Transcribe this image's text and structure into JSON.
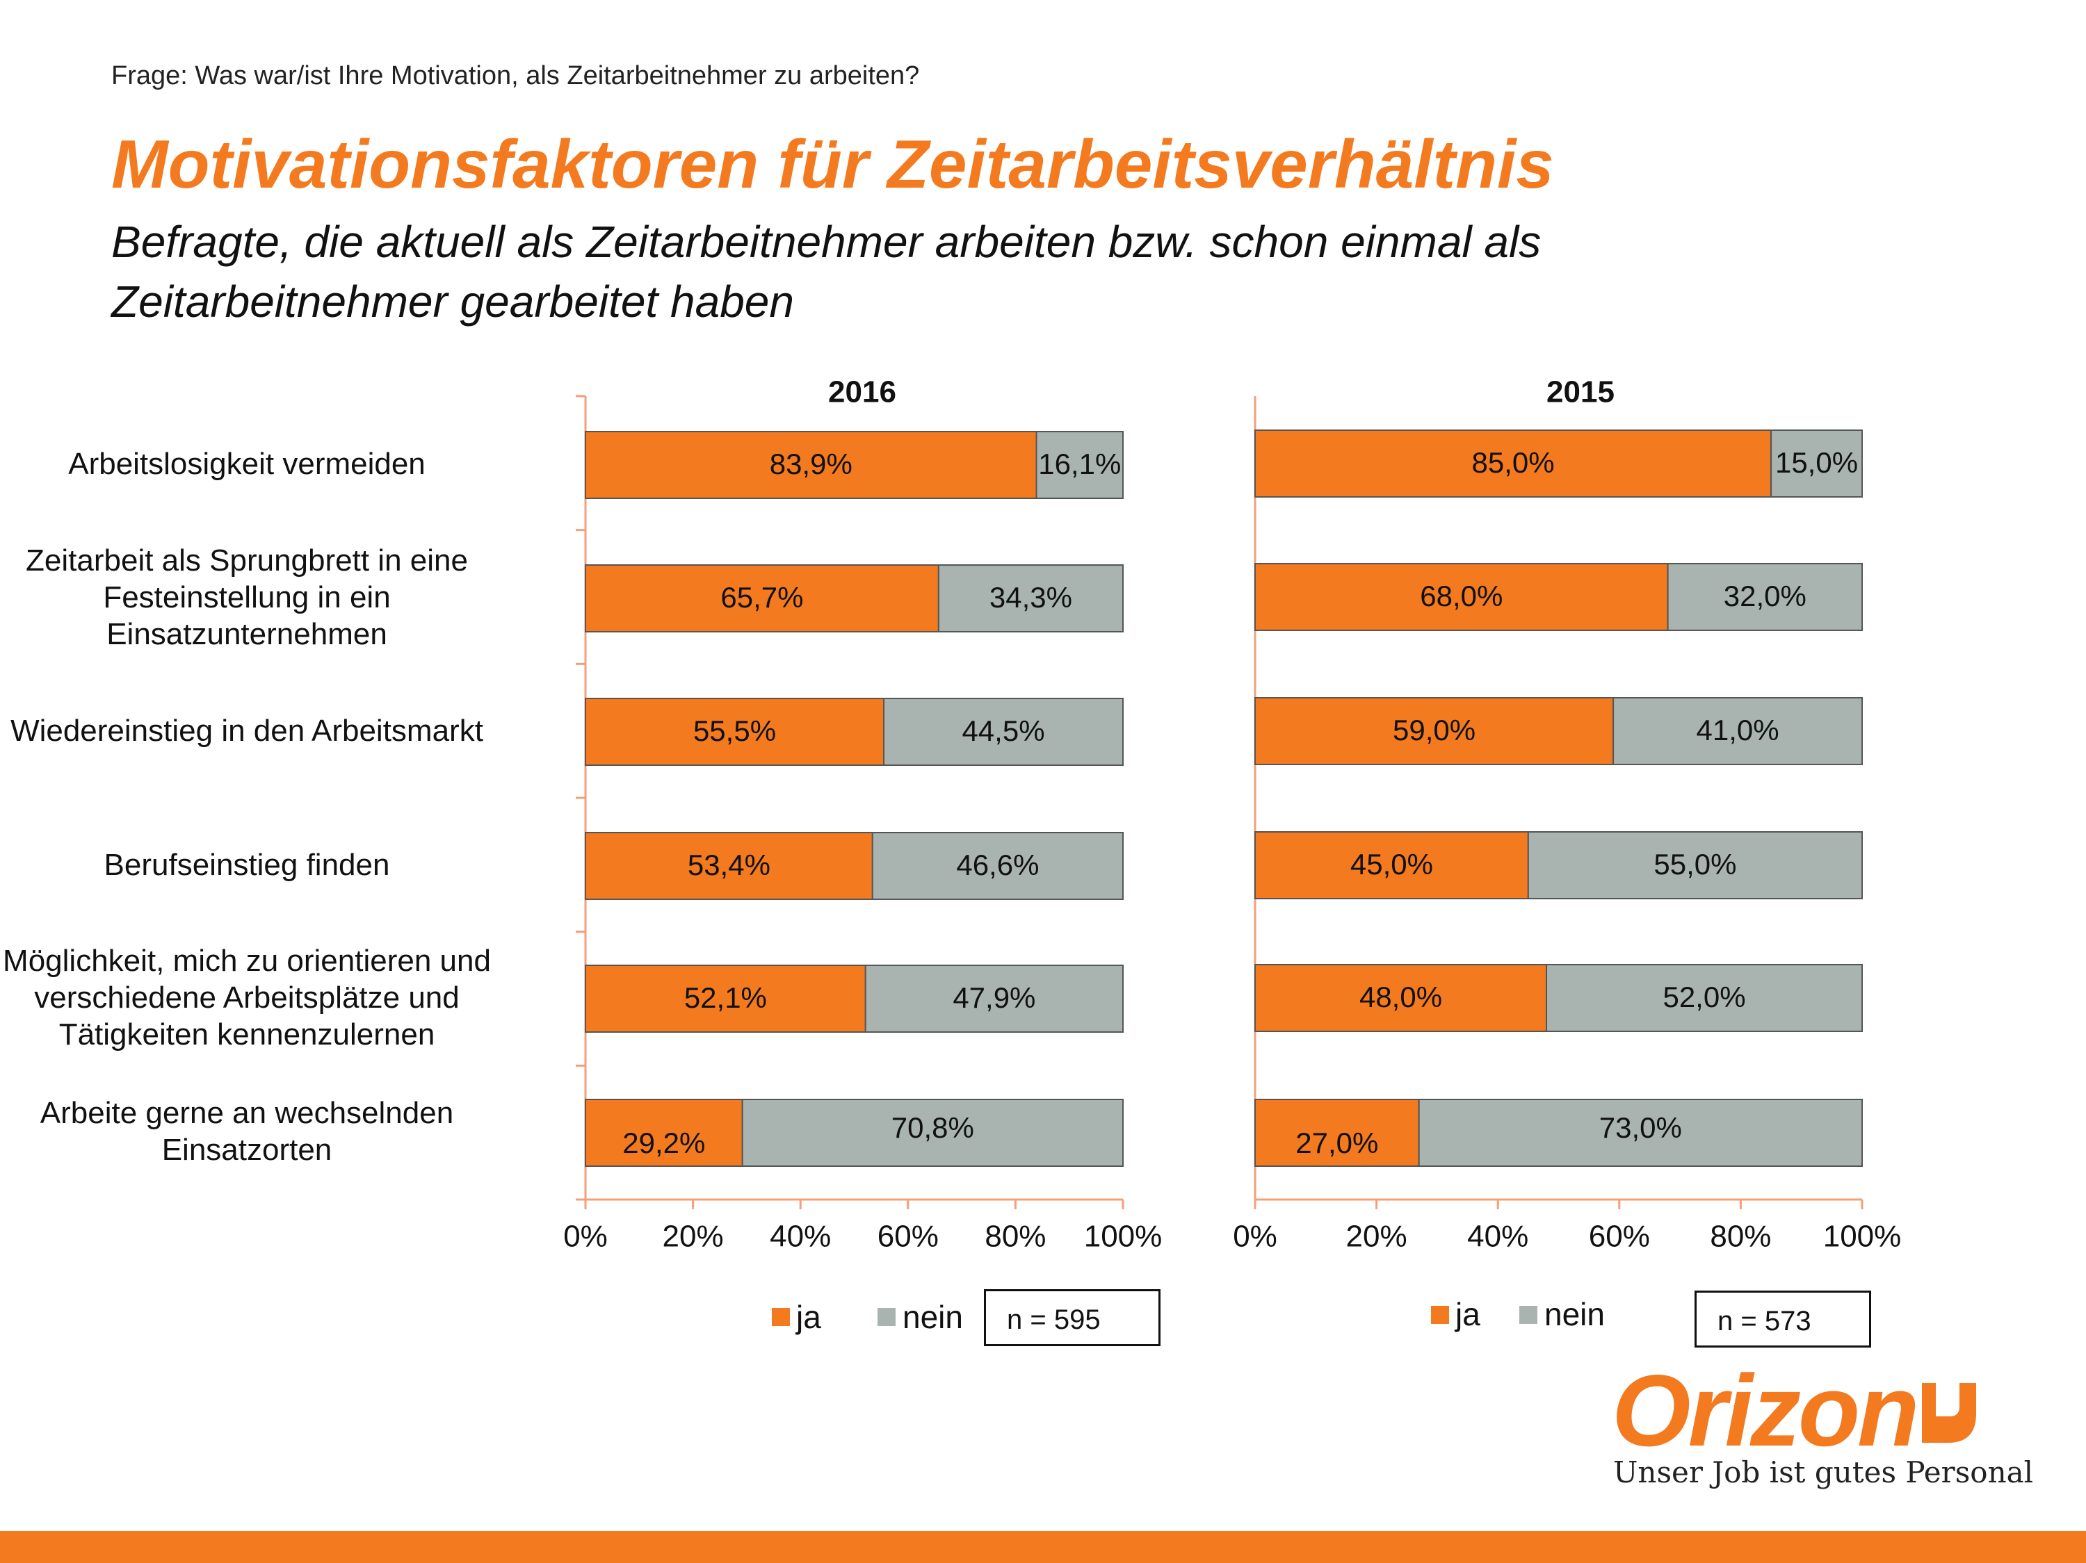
{
  "question": "Frage: Was war/ist Ihre Motivation, als Zeitarbeitnehmer zu arbeiten?",
  "title": "Motivationsfaktoren für Zeitarbeitsverhältnis",
  "subtitle": "Befragte, die aktuell als Zeitarbeitnehmer arbeiten bzw. schon einmal als Zeitarbeitnehmer gearbeitet haben",
  "colors": {
    "ja": "#f47a1f",
    "nein": "#a9b4b0",
    "accent": "#f47a1f"
  },
  "logo": {
    "word": "Orizon",
    "tagline": "Unser Job ist gutes Personal",
    "icon": "orizon-corner-mark-icon"
  },
  "chart_data": [
    {
      "type": "bar",
      "orientation": "horizontal",
      "stacked": true,
      "title": "2016",
      "categories": [
        "Arbeitslosigkeit vermeiden",
        "Zeitarbeit als Sprungbrett in eine Festeinstellung in ein Einsatzunternehmen",
        "Wiedereinstieg in den Arbeitsmarkt",
        "Berufseinstieg finden",
        "Möglichkeit, mich zu orientieren und verschiedene Arbeitsplätze und Tätigkeiten kennenzulernen",
        "Arbeite gerne an wechselnden Einsatzorten"
      ],
      "series": [
        {
          "name": "ja",
          "values": [
            83.9,
            65.7,
            55.5,
            53.4,
            52.1,
            29.2
          ],
          "labels": [
            "83,9%",
            "65,7%",
            "55,5%",
            "53,4%",
            "52,1%",
            "29,2%"
          ]
        },
        {
          "name": "nein",
          "values": [
            16.1,
            34.3,
            44.5,
            46.6,
            47.9,
            70.8
          ],
          "labels": [
            "16,1%",
            "34,3%",
            "44,5%",
            "46,6%",
            "47,9%",
            "70,8%"
          ]
        }
      ],
      "xlim": [
        0,
        100
      ],
      "xticks": [
        "0%",
        "20%",
        "40%",
        "60%",
        "80%",
        "100%"
      ],
      "legend": "bottom",
      "note": "n = 595"
    },
    {
      "type": "bar",
      "orientation": "horizontal",
      "stacked": true,
      "title": "2015",
      "categories": [
        "Arbeitslosigkeit vermeiden",
        "Zeitarbeit als Sprungbrett in eine Festeinstellung in ein Einsatzunternehmen",
        "Wiedereinstieg in den Arbeitsmarkt",
        "Berufseinstieg finden",
        "Möglichkeit, mich zu orientieren und verschiedene Arbeitsplätze und Tätigkeiten kennenzulernen",
        "Arbeite gerne an wechselnden Einsatzorten"
      ],
      "series": [
        {
          "name": "ja",
          "values": [
            85.0,
            68.0,
            59.0,
            45.0,
            48.0,
            27.0
          ],
          "labels": [
            "85,0%",
            "68,0%",
            "59,0%",
            "45,0%",
            "48,0%",
            "27,0%"
          ]
        },
        {
          "name": "nein",
          "values": [
            15.0,
            32.0,
            41.0,
            55.0,
            52.0,
            73.0
          ],
          "labels": [
            "15,0%",
            "32,0%",
            "41,0%",
            "55,0%",
            "52,0%",
            "73,0%"
          ]
        }
      ],
      "xlim": [
        0,
        100
      ],
      "xticks": [
        "0%",
        "20%",
        "40%",
        "60%",
        "80%",
        "100%"
      ],
      "legend": "bottom",
      "note": "n = 573"
    }
  ],
  "category_lines": [
    [
      "Arbeitslosigkeit vermeiden"
    ],
    [
      "Zeitarbeit als Sprungbrett in eine",
      "Festeinstellung in ein",
      "Einsatzunternehmen"
    ],
    [
      "Wiedereinstieg in den Arbeitsmarkt"
    ],
    [
      "Berufseinstieg finden"
    ],
    [
      "Möglichkeit, mich zu orientieren und",
      "verschiedene Arbeitsplätze und",
      "Tätigkeiten kennenzulernen"
    ],
    [
      "Arbeite gerne an wechselnden",
      "Einsatzorten"
    ]
  ]
}
